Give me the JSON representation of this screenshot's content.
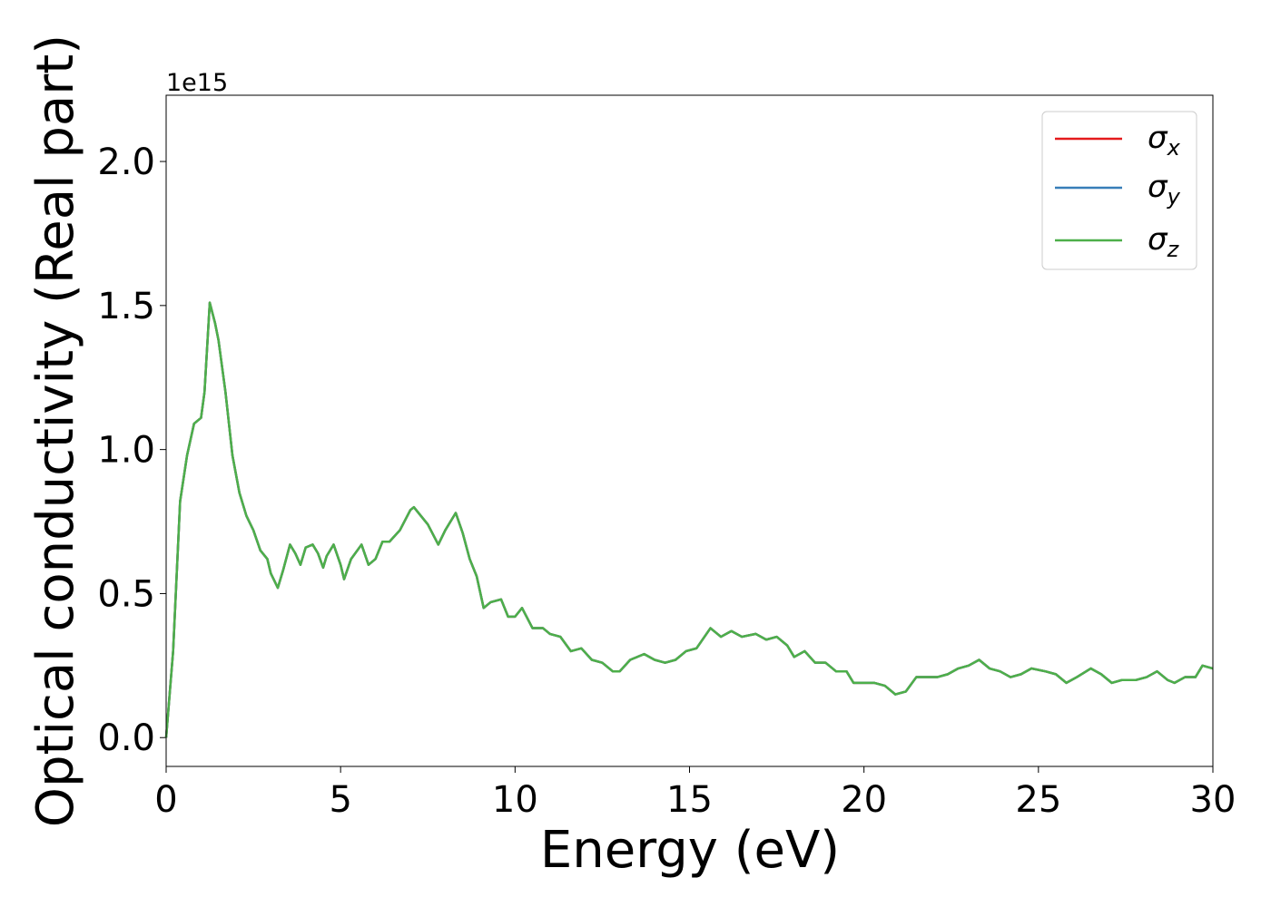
{
  "chart_data": {
    "type": "line",
    "xlabel": "Energy (eV)",
    "ylabel": "Optical conductivity (Real part)",
    "y_offset_label": "1e15",
    "xlim": [
      0,
      30
    ],
    "ylim": [
      -0.1,
      2.23
    ],
    "xticks": [
      0,
      5,
      10,
      15,
      20,
      25,
      30
    ],
    "yticks": [
      {
        "value": 0,
        "label": "0.0"
      },
      0.5,
      {
        "value": 1,
        "label": "1.0"
      },
      1.5,
      {
        "value": 2,
        "label": "2.0"
      }
    ],
    "legend": "upper right",
    "x": [
      0,
      0.2,
      0.4,
      0.6,
      0.8,
      1.0,
      1.1,
      1.25,
      1.4,
      1.5,
      1.7,
      1.9,
      2.1,
      2.3,
      2.5,
      2.7,
      2.9,
      3.0,
      3.2,
      3.35,
      3.55,
      3.7,
      3.85,
      4.0,
      4.2,
      4.35,
      4.5,
      4.6,
      4.8,
      5.0,
      5.1,
      5.3,
      5.6,
      5.8,
      6.0,
      6.2,
      6.4,
      6.7,
      7.0,
      7.1,
      7.3,
      7.5,
      7.8,
      8.0,
      8.3,
      8.5,
      8.7,
      8.9,
      9.1,
      9.3,
      9.6,
      9.8,
      10.0,
      10.2,
      10.5,
      10.8,
      11.0,
      11.3,
      11.6,
      11.9,
      12.2,
      12.5,
      12.8,
      13.0,
      13.3,
      13.7,
      14.0,
      14.3,
      14.6,
      14.9,
      15.2,
      15.6,
      15.9,
      16.2,
      16.5,
      16.9,
      17.2,
      17.5,
      17.8,
      18.0,
      18.3,
      18.6,
      18.9,
      19.2,
      19.5,
      19.7,
      20.0,
      20.3,
      20.6,
      20.9,
      21.2,
      21.5,
      21.8,
      22.1,
      22.4,
      22.7,
      23.0,
      23.3,
      23.6,
      23.9,
      24.2,
      24.5,
      24.8,
      25.2,
      25.5,
      25.8,
      26.1,
      26.5,
      26.8,
      27.1,
      27.4,
      27.8,
      28.1,
      28.4,
      28.7,
      28.9,
      29.2,
      29.5,
      29.7,
      30.0
    ],
    "series": [
      {
        "name": "σx",
        "color": "#e41a1c",
        "values": [
          0.0,
          0.3,
          0.82,
          0.98,
          1.09,
          1.11,
          1.2,
          1.51,
          1.44,
          1.38,
          1.2,
          0.98,
          0.85,
          0.77,
          0.72,
          0.65,
          0.62,
          0.57,
          0.52,
          0.58,
          0.67,
          0.64,
          0.6,
          0.66,
          0.67,
          0.64,
          0.59,
          0.63,
          0.67,
          0.6,
          0.55,
          0.62,
          0.67,
          0.6,
          0.62,
          0.68,
          0.68,
          0.72,
          0.79,
          0.8,
          0.77,
          0.74,
          0.67,
          0.72,
          0.78,
          0.71,
          0.62,
          0.56,
          0.45,
          0.47,
          0.48,
          0.42,
          0.42,
          0.45,
          0.38,
          0.38,
          0.36,
          0.35,
          0.3,
          0.31,
          0.27,
          0.26,
          0.23,
          0.23,
          0.27,
          0.29,
          0.27,
          0.26,
          0.27,
          0.3,
          0.31,
          0.38,
          0.35,
          0.37,
          0.35,
          0.36,
          0.34,
          0.35,
          0.32,
          0.28,
          0.3,
          0.26,
          0.26,
          0.23,
          0.23,
          0.19,
          0.19,
          0.19,
          0.18,
          0.15,
          0.16,
          0.21,
          0.21,
          0.21,
          0.22,
          0.24,
          0.25,
          0.27,
          0.24,
          0.23,
          0.21,
          0.22,
          0.24,
          0.23,
          0.22,
          0.19,
          0.21,
          0.24,
          0.22,
          0.19,
          0.2,
          0.2,
          0.21,
          0.23,
          0.2,
          0.19,
          0.21,
          0.21,
          0.25,
          0.24
        ]
      },
      {
        "name": "σy",
        "color": "#377eb8",
        "values": [
          0.0,
          0.3,
          0.82,
          0.98,
          1.09,
          1.11,
          1.2,
          1.51,
          1.44,
          1.38,
          1.2,
          0.98,
          0.85,
          0.77,
          0.72,
          0.65,
          0.62,
          0.57,
          0.52,
          0.58,
          0.67,
          0.64,
          0.6,
          0.66,
          0.67,
          0.64,
          0.59,
          0.63,
          0.67,
          0.6,
          0.55,
          0.62,
          0.67,
          0.6,
          0.62,
          0.68,
          0.68,
          0.72,
          0.79,
          0.8,
          0.77,
          0.74,
          0.67,
          0.72,
          0.78,
          0.71,
          0.62,
          0.56,
          0.45,
          0.47,
          0.48,
          0.42,
          0.42,
          0.45,
          0.38,
          0.38,
          0.36,
          0.35,
          0.3,
          0.31,
          0.27,
          0.26,
          0.23,
          0.23,
          0.27,
          0.29,
          0.27,
          0.26,
          0.27,
          0.3,
          0.31,
          0.38,
          0.35,
          0.37,
          0.35,
          0.36,
          0.34,
          0.35,
          0.32,
          0.28,
          0.3,
          0.26,
          0.26,
          0.23,
          0.23,
          0.19,
          0.19,
          0.19,
          0.18,
          0.15,
          0.16,
          0.21,
          0.21,
          0.21,
          0.22,
          0.24,
          0.25,
          0.27,
          0.24,
          0.23,
          0.21,
          0.22,
          0.24,
          0.23,
          0.22,
          0.19,
          0.21,
          0.24,
          0.22,
          0.19,
          0.2,
          0.2,
          0.21,
          0.23,
          0.2,
          0.19,
          0.21,
          0.21,
          0.25,
          0.24
        ]
      },
      {
        "name": "σz",
        "color": "#4daf4a",
        "values": [
          0.0,
          0.3,
          0.82,
          0.98,
          1.09,
          1.11,
          1.2,
          1.51,
          1.44,
          1.38,
          1.2,
          0.98,
          0.85,
          0.77,
          0.72,
          0.65,
          0.62,
          0.57,
          0.52,
          0.58,
          0.67,
          0.64,
          0.6,
          0.66,
          0.67,
          0.64,
          0.59,
          0.63,
          0.67,
          0.6,
          0.55,
          0.62,
          0.67,
          0.6,
          0.62,
          0.68,
          0.68,
          0.72,
          0.79,
          0.8,
          0.77,
          0.74,
          0.67,
          0.72,
          0.78,
          0.71,
          0.62,
          0.56,
          0.45,
          0.47,
          0.48,
          0.42,
          0.42,
          0.45,
          0.38,
          0.38,
          0.36,
          0.35,
          0.3,
          0.31,
          0.27,
          0.26,
          0.23,
          0.23,
          0.27,
          0.29,
          0.27,
          0.26,
          0.27,
          0.3,
          0.31,
          0.38,
          0.35,
          0.37,
          0.35,
          0.36,
          0.34,
          0.35,
          0.32,
          0.28,
          0.3,
          0.26,
          0.26,
          0.23,
          0.23,
          0.19,
          0.19,
          0.19,
          0.18,
          0.15,
          0.16,
          0.21,
          0.21,
          0.21,
          0.22,
          0.24,
          0.25,
          0.27,
          0.24,
          0.23,
          0.21,
          0.22,
          0.24,
          0.23,
          0.22,
          0.19,
          0.21,
          0.24,
          0.22,
          0.19,
          0.2,
          0.2,
          0.21,
          0.23,
          0.2,
          0.19,
          0.21,
          0.21,
          0.25,
          0.24
        ]
      }
    ]
  }
}
